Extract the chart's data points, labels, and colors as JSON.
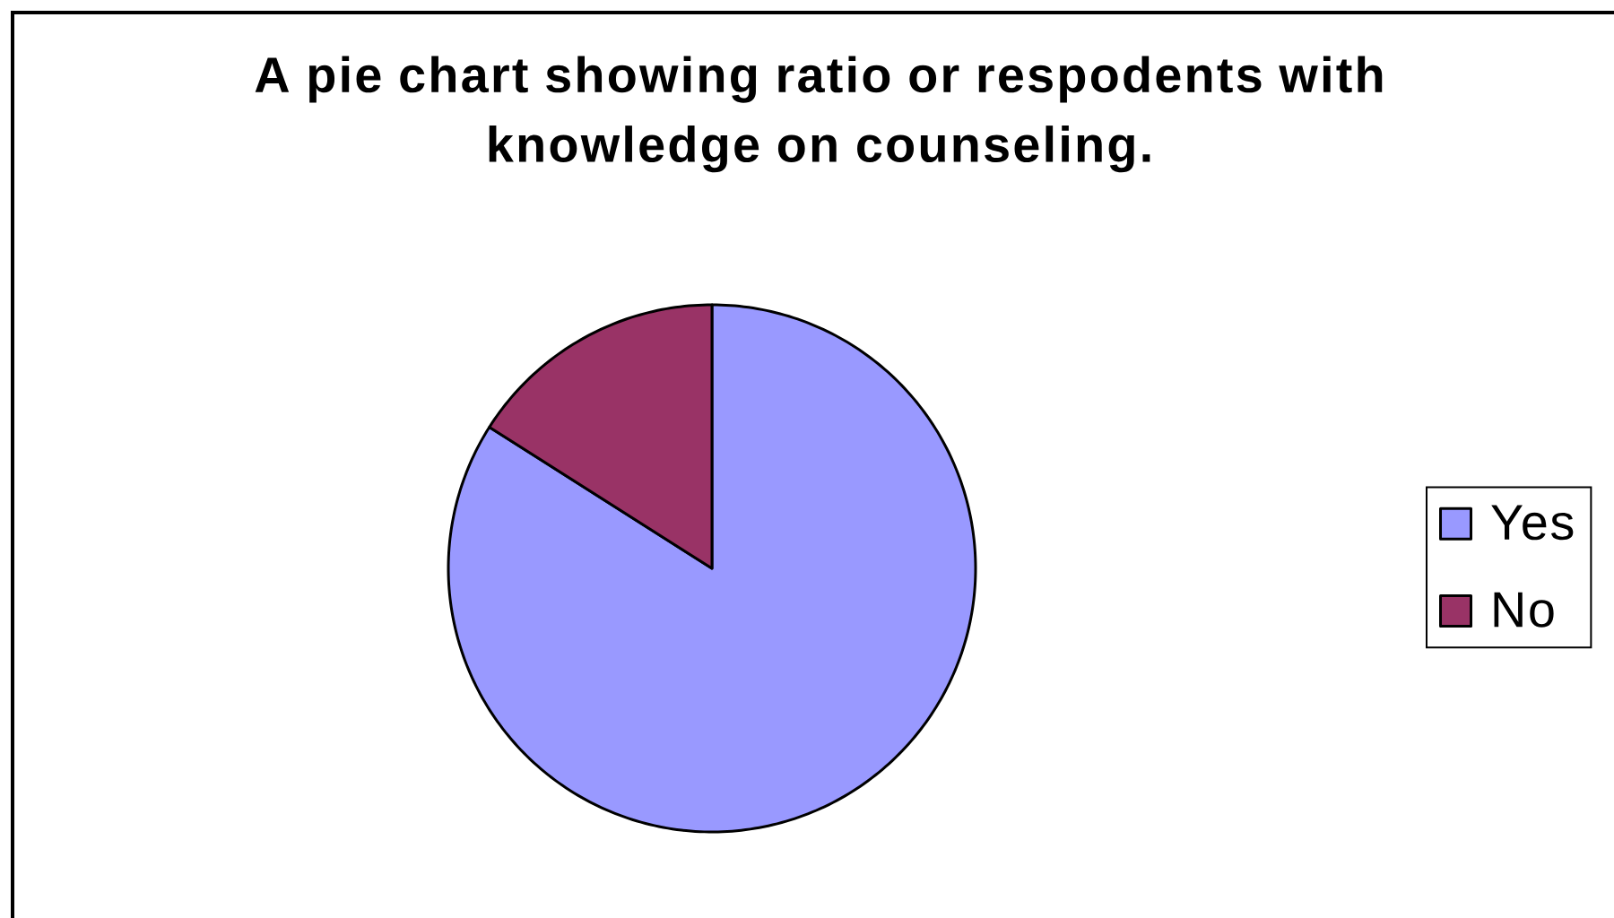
{
  "chart_data": {
    "type": "pie",
    "title": "A pie chart showing ratio or respodents with knowledge on counseling.",
    "categories": [
      "Yes",
      "No"
    ],
    "values": [
      84,
      16
    ],
    "colors": [
      "#9999ff",
      "#993366"
    ],
    "legend": "right"
  }
}
